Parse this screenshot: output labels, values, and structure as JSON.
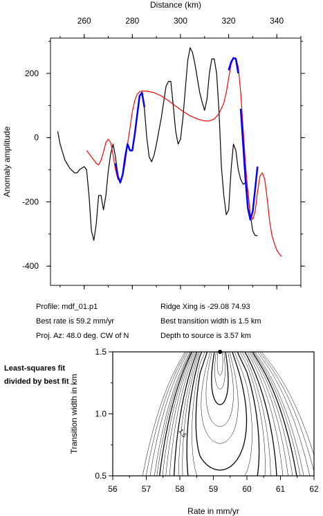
{
  "chart_data": [
    {
      "type": "line",
      "xlabel": "Distance (km)",
      "ylabel": "Anomaly amplitude",
      "xlim": [
        246,
        350
      ],
      "ylim": [
        -460,
        310
      ],
      "x_ticks": [
        260,
        280,
        300,
        320,
        340
      ],
      "y_ticks": [
        200,
        0,
        -200,
        -400
      ],
      "x_axis_position": "top",
      "series": [
        {
          "color": "#000000",
          "points": [
            [
              249,
              20
            ],
            [
              250,
              -20
            ],
            [
              252,
              -70
            ],
            [
              254,
              -95
            ],
            [
              256,
              -110
            ],
            [
              257,
              -110
            ],
            [
              258,
              -100
            ],
            [
              260,
              -90
            ],
            [
              261,
              -100
            ],
            [
              262,
              -180
            ],
            [
              263,
              -290
            ],
            [
              264,
              -320
            ],
            [
              265,
              -270
            ],
            [
              266,
              -180
            ],
            [
              267,
              -180
            ],
            [
              268,
              -225
            ],
            [
              269,
              -180
            ],
            [
              270,
              -105
            ],
            [
              271,
              -50
            ],
            [
              272,
              -20
            ],
            [
              273,
              -60
            ],
            [
              274,
              -120
            ],
            [
              275,
              -140
            ],
            [
              276,
              -115
            ],
            [
              277,
              -60
            ],
            [
              278,
              -20
            ],
            [
              279,
              -40
            ],
            [
              280,
              -40
            ],
            [
              281,
              10
            ],
            [
              282,
              70
            ],
            [
              283,
              130
            ],
            [
              284,
              140
            ],
            [
              285,
              90
            ],
            [
              286,
              0
            ],
            [
              287,
              -60
            ],
            [
              288,
              -75
            ],
            [
              289,
              -55
            ],
            [
              290,
              -20
            ],
            [
              291,
              20
            ],
            [
              292,
              60
            ],
            [
              293,
              110
            ],
            [
              294,
              160
            ],
            [
              295,
              175
            ],
            [
              296,
              175
            ],
            [
              297,
              100
            ],
            [
              298,
              20
            ],
            [
              299,
              -20
            ],
            [
              300,
              -5
            ],
            [
              301,
              60
            ],
            [
              302,
              150
            ],
            [
              303,
              240
            ],
            [
              304,
              280
            ],
            [
              305,
              265
            ],
            [
              306,
              230
            ],
            [
              307,
              185
            ],
            [
              308,
              140
            ],
            [
              309,
              110
            ],
            [
              310,
              85
            ],
            [
              311,
              120
            ],
            [
              312,
              200
            ],
            [
              313,
              245
            ],
            [
              314,
              245
            ],
            [
              315,
              200
            ],
            [
              316,
              80
            ],
            [
              317,
              -90
            ],
            [
              318,
              -180
            ],
            [
              319,
              -240
            ],
            [
              320,
              -225
            ],
            [
              321,
              -100
            ],
            [
              322,
              -20
            ],
            [
              323,
              -40
            ],
            [
              324,
              -100
            ],
            [
              325,
              -130
            ],
            [
              326,
              -145
            ],
            [
              327,
              -140
            ],
            [
              328,
              -165
            ],
            [
              329,
              -240
            ],
            [
              330,
              -290
            ],
            [
              331,
              -305
            ],
            [
              332,
              -305
            ]
          ]
        },
        {
          "color": "#ff0000",
          "points": [
            [
              261,
              -40
            ],
            [
              263,
              -60
            ],
            [
              265,
              -80
            ],
            [
              266,
              -85
            ],
            [
              267,
              -70
            ],
            [
              268,
              -45
            ],
            [
              269,
              -15
            ],
            [
              270,
              -5
            ],
            [
              271,
              -15
            ],
            [
              272,
              -55
            ],
            [
              273,
              -100
            ],
            [
              274,
              -130
            ],
            [
              275,
              -135
            ],
            [
              276,
              -120
            ],
            [
              277,
              -80
            ],
            [
              278,
              -20
            ],
            [
              279,
              30
            ],
            [
              280,
              80
            ],
            [
              281,
              115
            ],
            [
              282,
              135
            ],
            [
              283,
              143
            ],
            [
              284,
              145
            ],
            [
              286,
              145
            ],
            [
              289,
              140
            ],
            [
              292,
              130
            ],
            [
              295,
              115
            ],
            [
              298,
              98
            ],
            [
              301,
              82
            ],
            [
              304,
              68
            ],
            [
              307,
              58
            ],
            [
              310,
              52
            ],
            [
              312,
              52
            ],
            [
              314,
              58
            ],
            [
              316,
              75
            ],
            [
              318,
              108
            ],
            [
              319,
              140
            ],
            [
              320,
              185
            ],
            [
              321,
              228
            ],
            [
              322,
              248
            ],
            [
              323,
              248
            ],
            [
              324,
              220
            ],
            [
              325,
              140
            ],
            [
              326,
              30
            ],
            [
              327,
              -80
            ],
            [
              328,
              -170
            ],
            [
              329,
              -240
            ],
            [
              330,
              -255
            ],
            [
              331,
              -230
            ],
            [
              332,
              -170
            ],
            [
              333,
              -120
            ],
            [
              334,
              -110
            ],
            [
              335,
              -130
            ],
            [
              336,
              -190
            ],
            [
              337,
              -260
            ],
            [
              338,
              -305
            ],
            [
              339,
              -330
            ],
            [
              340,
              -350
            ],
            [
              341,
              -362
            ],
            [
              342,
              -370
            ]
          ]
        },
        {
          "color": "#0000ff",
          "segments": [
            [
              [
                273,
                -80
              ],
              [
                274,
                -120
              ],
              [
                275,
                -140
              ],
              [
                276,
                -115
              ],
              [
                277,
                -60
              ],
              [
                278,
                -20
              ],
              [
                279,
                -40
              ],
              [
                280,
                -40
              ],
              [
                281,
                10
              ],
              [
                282,
                70
              ],
              [
                283,
                130
              ],
              [
                284,
                140
              ],
              [
                285,
                95
              ]
            ],
            [
              [
                320,
                210
              ],
              [
                321,
                235
              ],
              [
                322,
                248
              ],
              [
                323,
                245
              ],
              [
                324,
                200
              ]
            ],
            [
              [
                325,
                90
              ],
              [
                326,
                -20
              ],
              [
                327,
                -130
              ],
              [
                328,
                -220
              ],
              [
                329,
                -255
              ],
              [
                330,
                -230
              ],
              [
                331,
                -160
              ],
              [
                332,
                -90
              ]
            ]
          ]
        }
      ]
    },
    {
      "type": "contour",
      "xlabel": "Rate in mm/yr",
      "ylabel": "Transition width in km",
      "xlim": [
        56,
        62
      ],
      "ylim": [
        0.5,
        1.5
      ],
      "x_ticks": [
        "56",
        "57",
        "58",
        "59",
        "60",
        "61",
        "62"
      ],
      "y_ticks": [
        "0.5",
        "1.0",
        "1.5"
      ],
      "best_fit": {
        "rate": 59.2,
        "width": 1.5
      },
      "contour_label": "1.5",
      "levels": [
        1.02,
        1.05,
        1.1,
        1.2,
        1.3,
        1.5,
        1.7,
        2.0,
        2.3,
        2.6,
        3.0,
        3.5,
        4.0,
        4.5,
        5.0,
        5.5,
        6.0,
        7.0,
        8.0,
        9.0
      ]
    }
  ],
  "annotations": {
    "profile": "Profile: mdf_01.p1",
    "ridge_xing": "Ridge Xing is -29.08 74.93",
    "best_rate": "Best rate is 59.2 mm/yr",
    "best_width": "Best transition width is 1.5 km",
    "proj_az": "Proj. Az: 48.0 deg. CW of N",
    "depth": "Depth to source is   3.57 km"
  },
  "side_label": "Least-squares fit divided by best fit"
}
